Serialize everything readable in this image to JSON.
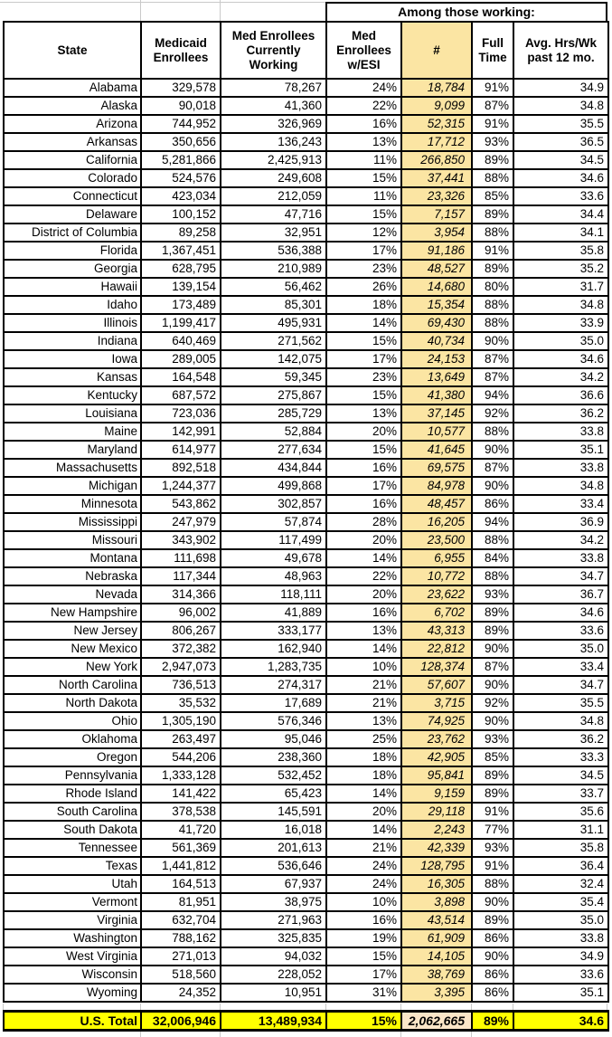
{
  "chart_data": {
    "type": "table",
    "group_label": "Among those working:",
    "group_label_spans_columns": [
      3,
      4,
      5,
      6
    ],
    "columns": [
      "State",
      "Medicaid Enrollees",
      "Med Enrollees Currently Working",
      "Med Enrollees w/ESI",
      "#",
      "Full Time",
      "Avg. Hrs/Wk past 12 mo."
    ],
    "rows": [
      [
        "Alabama",
        "329,578",
        "78,267",
        "24%",
        "18,784",
        "91%",
        "34.9"
      ],
      [
        "Alaska",
        "90,018",
        "41,360",
        "22%",
        "9,099",
        "87%",
        "34.8"
      ],
      [
        "Arizona",
        "744,952",
        "326,969",
        "16%",
        "52,315",
        "91%",
        "35.5"
      ],
      [
        "Arkansas",
        "350,656",
        "136,243",
        "13%",
        "17,712",
        "93%",
        "36.5"
      ],
      [
        "California",
        "5,281,866",
        "2,425,913",
        "11%",
        "266,850",
        "89%",
        "34.5"
      ],
      [
        "Colorado",
        "524,576",
        "249,608",
        "15%",
        "37,441",
        "88%",
        "34.6"
      ],
      [
        "Connecticut",
        "423,034",
        "212,059",
        "11%",
        "23,326",
        "85%",
        "33.6"
      ],
      [
        "Delaware",
        "100,152",
        "47,716",
        "15%",
        "7,157",
        "89%",
        "34.4"
      ],
      [
        "District of Columbia",
        "89,258",
        "32,951",
        "12%",
        "3,954",
        "88%",
        "34.1"
      ],
      [
        "Florida",
        "1,367,451",
        "536,388",
        "17%",
        "91,186",
        "91%",
        "35.8"
      ],
      [
        "Georgia",
        "628,795",
        "210,989",
        "23%",
        "48,527",
        "89%",
        "35.2"
      ],
      [
        "Hawaii",
        "139,154",
        "56,462",
        "26%",
        "14,680",
        "80%",
        "31.7"
      ],
      [
        "Idaho",
        "173,489",
        "85,301",
        "18%",
        "15,354",
        "88%",
        "34.8"
      ],
      [
        "Illinois",
        "1,199,417",
        "495,931",
        "14%",
        "69,430",
        "88%",
        "33.9"
      ],
      [
        "Indiana",
        "640,469",
        "271,562",
        "15%",
        "40,734",
        "90%",
        "35.0"
      ],
      [
        "Iowa",
        "289,005",
        "142,075",
        "17%",
        "24,153",
        "87%",
        "34.6"
      ],
      [
        "Kansas",
        "164,548",
        "59,345",
        "23%",
        "13,649",
        "87%",
        "34.2"
      ],
      [
        "Kentucky",
        "687,572",
        "275,867",
        "15%",
        "41,380",
        "94%",
        "36.6"
      ],
      [
        "Louisiana",
        "723,036",
        "285,729",
        "13%",
        "37,145",
        "92%",
        "36.2"
      ],
      [
        "Maine",
        "142,991",
        "52,884",
        "20%",
        "10,577",
        "88%",
        "33.8"
      ],
      [
        "Maryland",
        "614,977",
        "277,634",
        "15%",
        "41,645",
        "90%",
        "35.1"
      ],
      [
        "Massachusetts",
        "892,518",
        "434,844",
        "16%",
        "69,575",
        "87%",
        "33.8"
      ],
      [
        "Michigan",
        "1,244,377",
        "499,868",
        "17%",
        "84,978",
        "90%",
        "34.8"
      ],
      [
        "Minnesota",
        "543,862",
        "302,857",
        "16%",
        "48,457",
        "86%",
        "33.4"
      ],
      [
        "Mississippi",
        "247,979",
        "57,874",
        "28%",
        "16,205",
        "94%",
        "36.9"
      ],
      [
        "Missouri",
        "343,902",
        "117,499",
        "20%",
        "23,500",
        "88%",
        "34.2"
      ],
      [
        "Montana",
        "111,698",
        "49,678",
        "14%",
        "6,955",
        "84%",
        "33.8"
      ],
      [
        "Nebraska",
        "117,344",
        "48,963",
        "22%",
        "10,772",
        "88%",
        "34.7"
      ],
      [
        "Nevada",
        "314,366",
        "118,111",
        "20%",
        "23,622",
        "93%",
        "36.7"
      ],
      [
        "New Hampshire",
        "96,002",
        "41,889",
        "16%",
        "6,702",
        "89%",
        "34.6"
      ],
      [
        "New Jersey",
        "806,267",
        "333,177",
        "13%",
        "43,313",
        "89%",
        "33.6"
      ],
      [
        "New Mexico",
        "372,382",
        "162,940",
        "14%",
        "22,812",
        "90%",
        "35.0"
      ],
      [
        "New York",
        "2,947,073",
        "1,283,735",
        "10%",
        "128,374",
        "87%",
        "33.4"
      ],
      [
        "North Carolina",
        "736,513",
        "274,317",
        "21%",
        "57,607",
        "90%",
        "34.7"
      ],
      [
        "North Dakota",
        "35,532",
        "17,689",
        "21%",
        "3,715",
        "92%",
        "35.5"
      ],
      [
        "Ohio",
        "1,305,190",
        "576,346",
        "13%",
        "74,925",
        "90%",
        "34.8"
      ],
      [
        "Oklahoma",
        "263,497",
        "95,046",
        "25%",
        "23,762",
        "93%",
        "36.2"
      ],
      [
        "Oregon",
        "544,206",
        "238,360",
        "18%",
        "42,905",
        "85%",
        "33.3"
      ],
      [
        "Pennsylvania",
        "1,333,128",
        "532,452",
        "18%",
        "95,841",
        "89%",
        "34.5"
      ],
      [
        "Rhode Island",
        "141,422",
        "65,423",
        "14%",
        "9,159",
        "89%",
        "33.7"
      ],
      [
        "South Carolina",
        "378,538",
        "145,591",
        "20%",
        "29,118",
        "91%",
        "35.6"
      ],
      [
        "South Dakota",
        "41,720",
        "16,018",
        "14%",
        "2,243",
        "77%",
        "31.1"
      ],
      [
        "Tennessee",
        "561,369",
        "201,613",
        "21%",
        "42,339",
        "93%",
        "35.8"
      ],
      [
        "Texas",
        "1,441,812",
        "536,646",
        "24%",
        "128,795",
        "91%",
        "36.4"
      ],
      [
        "Utah",
        "164,513",
        "67,937",
        "24%",
        "16,305",
        "88%",
        "32.4"
      ],
      [
        "Vermont",
        "81,951",
        "38,975",
        "10%",
        "3,898",
        "90%",
        "35.4"
      ],
      [
        "Virginia",
        "632,704",
        "271,963",
        "16%",
        "43,514",
        "89%",
        "35.0"
      ],
      [
        "Washington",
        "788,162",
        "325,835",
        "19%",
        "61,909",
        "86%",
        "33.8"
      ],
      [
        "West Virginia",
        "271,013",
        "94,032",
        "15%",
        "14,105",
        "90%",
        "34.9"
      ],
      [
        "Wisconsin",
        "518,560",
        "228,052",
        "17%",
        "38,769",
        "86%",
        "33.6"
      ],
      [
        "Wyoming",
        "24,352",
        "10,951",
        "31%",
        "3,395",
        "86%",
        "35.1"
      ]
    ],
    "total_row": [
      "U.S. Total",
      "32,006,946",
      "13,489,934",
      "15%",
      "2,062,665",
      "89%",
      "34.6"
    ]
  },
  "styles": {
    "highlight_column_bg": "#fbe5a3",
    "total_row_bg": "#ffff00",
    "total_highlight_cell_bg": "#fbe6c8",
    "table_border_color": "#000000",
    "gridline_color": "#c9c9c9"
  }
}
